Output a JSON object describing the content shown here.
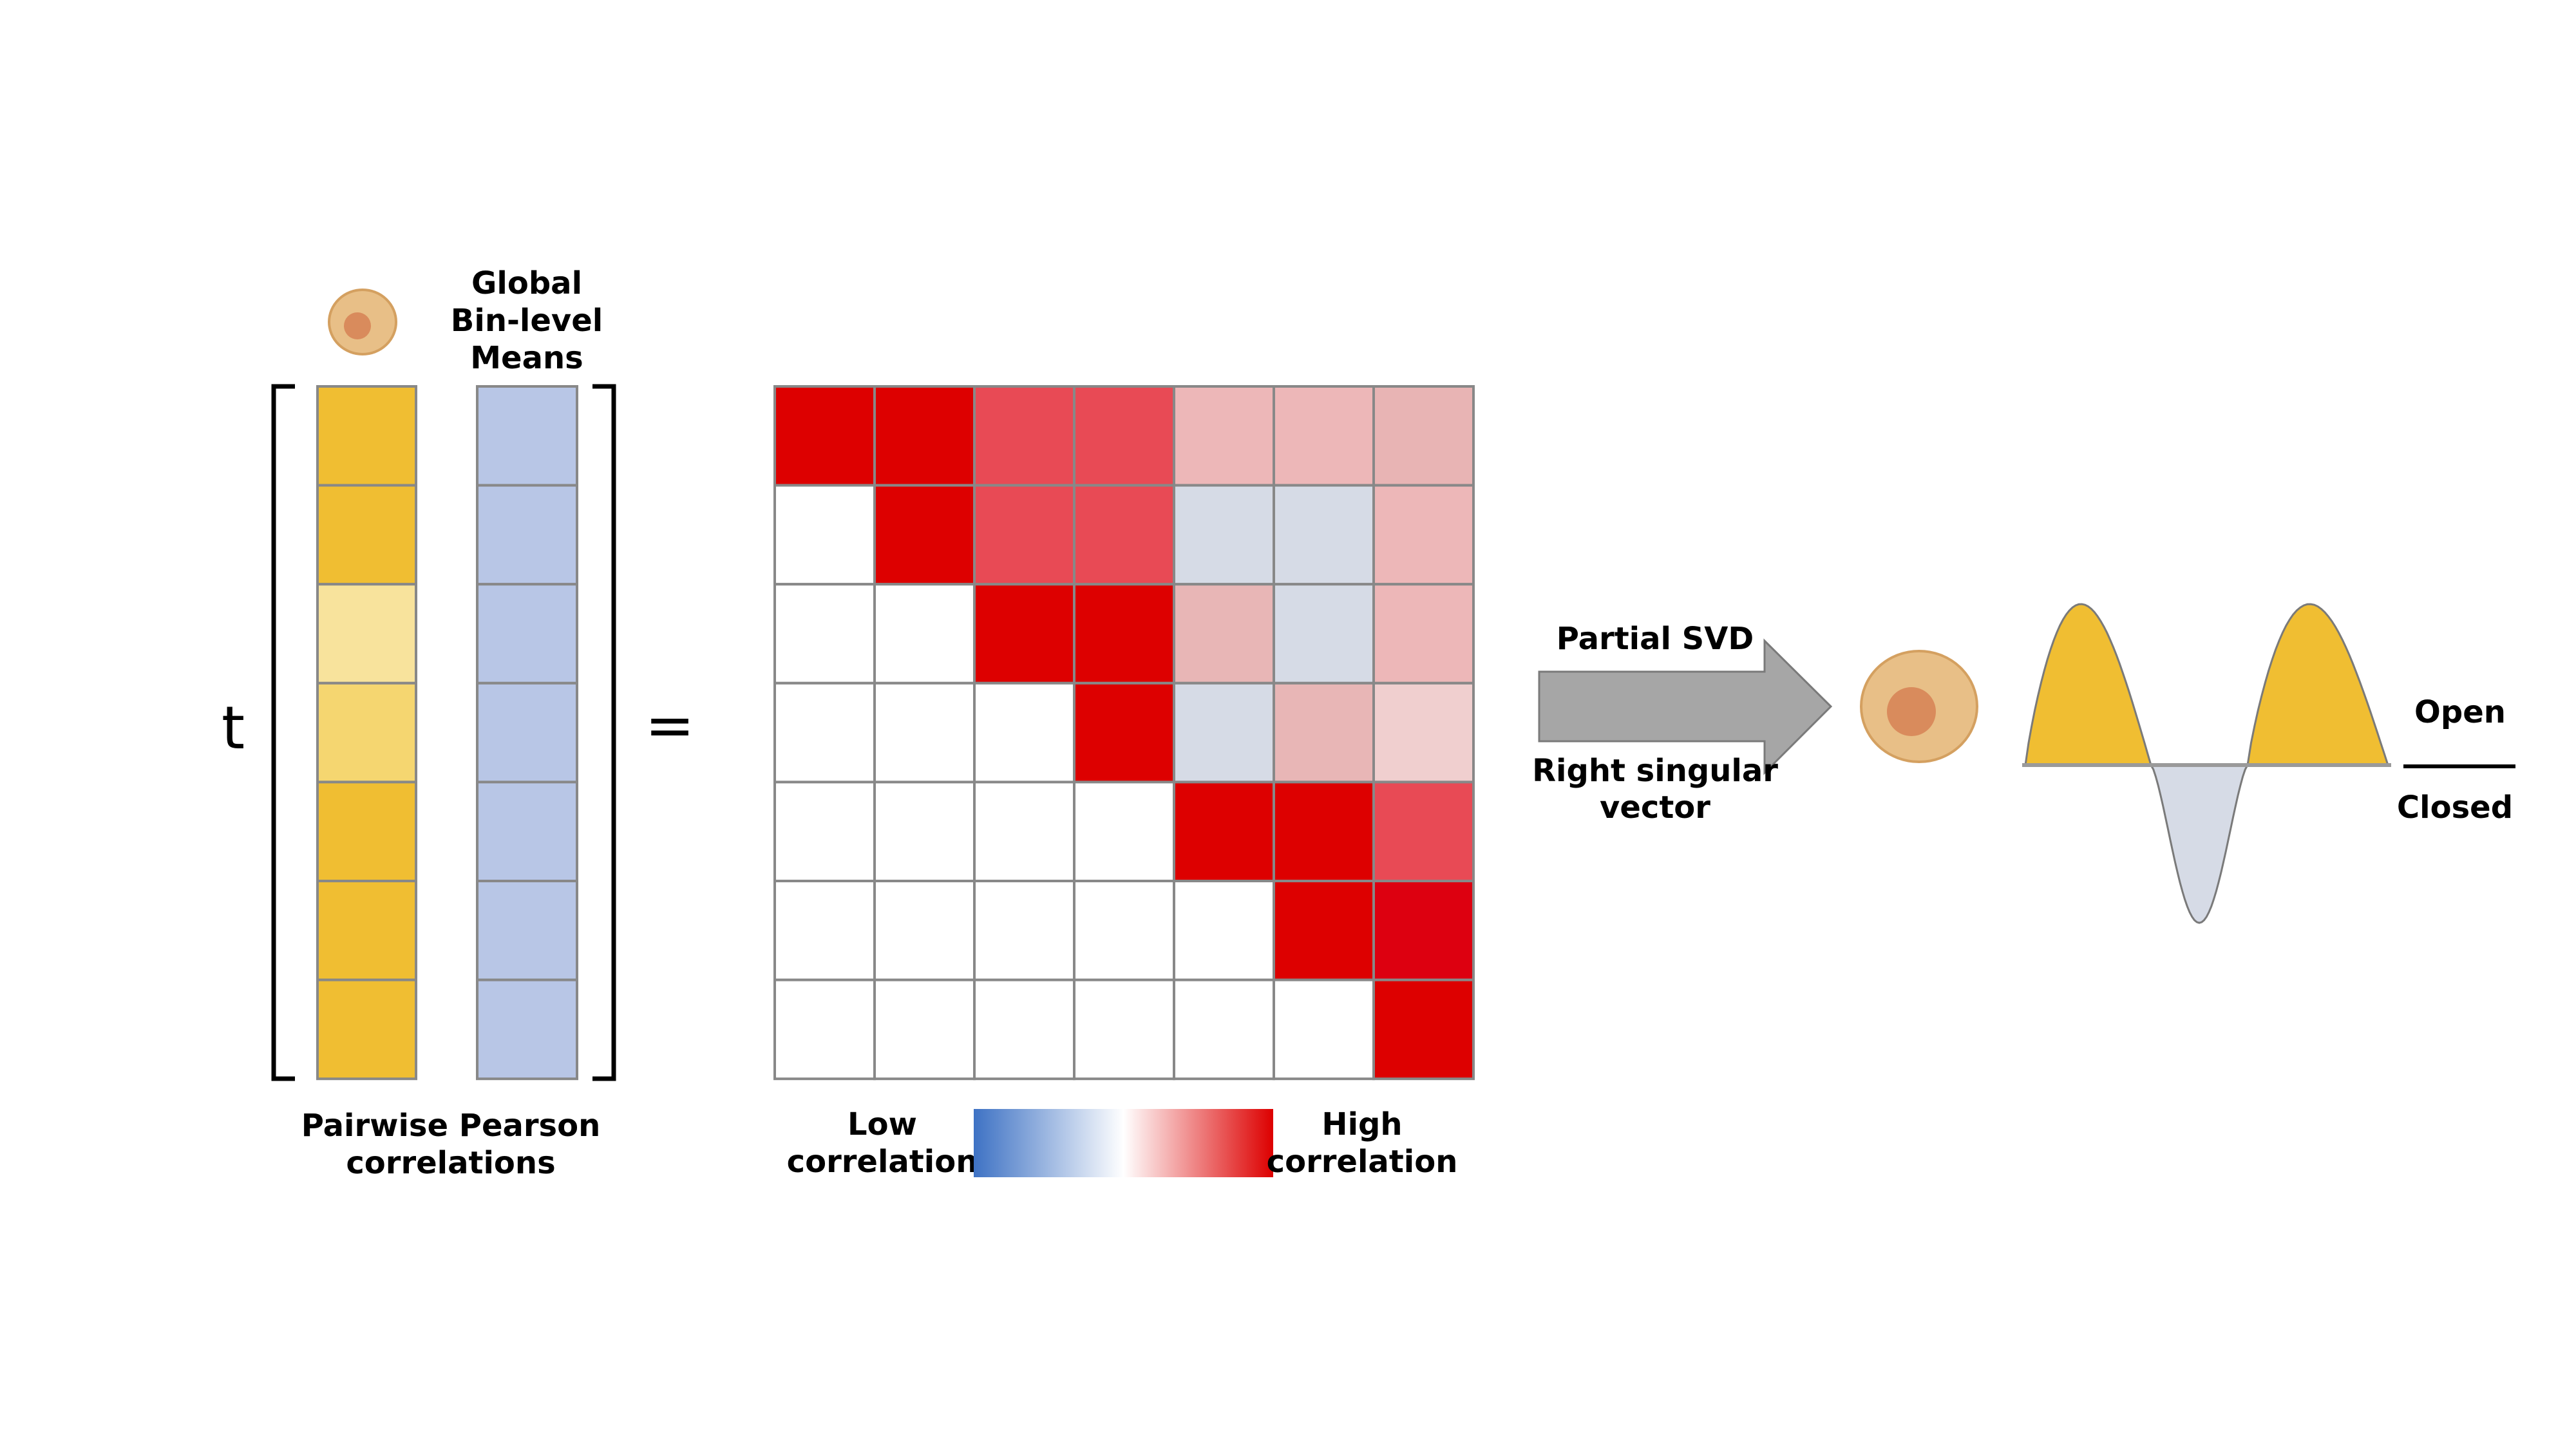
{
  "labels": {
    "global_means": [
      "Global",
      "Bin-level",
      "Means"
    ],
    "pairwise": [
      "Pairwise Pearson",
      "correlations"
    ],
    "t_symbol": "t",
    "equals": "=",
    "legend_low": [
      "Low",
      "correlation"
    ],
    "legend_high": [
      "High",
      "correlation"
    ],
    "arrow_top": "Partial SVD",
    "arrow_bottom": [
      "Right singular",
      "vector"
    ],
    "open": "Open",
    "closed": "Closed"
  },
  "colors": {
    "cell_outline": "#888888",
    "cell_nucleus": "#d98b5c",
    "cell_body": "#e8bf87",
    "cell_membrane": "#d4a060",
    "mean_column": "#b8c6e6",
    "arrow_fill": "#a6a6a6",
    "arrow_stroke": "#7a7a7a",
    "wave_positive": "#f0be32",
    "wave_negative": "#d6dbe6",
    "baseline": "#9a9a9a"
  },
  "correlation_vector": [
    "#f0be32",
    "#f0be32",
    "#f8e39c",
    "#f5d670",
    "#f0be32",
    "#f0be32",
    "#f0be32"
  ],
  "mean_vector": [
    "#b8c6e6",
    "#b8c6e6",
    "#b8c6e6",
    "#b8c6e6",
    "#b8c6e6",
    "#b8c6e6",
    "#b8c6e6"
  ],
  "matrix": [
    [
      "#dd0000",
      "#dd0000",
      "#e84a55",
      "#e84a55",
      "#edb7b8",
      "#edb7b8",
      "#e8b4b4"
    ],
    [
      "#ffffff",
      "#dd0000",
      "#e84a55",
      "#e84a55",
      "#d6dbe6",
      "#d6dbe6",
      "#edb7b8"
    ],
    [
      "#ffffff",
      "#ffffff",
      "#dd0000",
      "#dd0000",
      "#e8b6b6",
      "#d6dbe6",
      "#edb7b8"
    ],
    [
      "#ffffff",
      "#ffffff",
      "#ffffff",
      "#dd0000",
      "#d6dbe6",
      "#e8b6b6",
      "#f0cfcf"
    ],
    [
      "#ffffff",
      "#ffffff",
      "#ffffff",
      "#ffffff",
      "#dd0000",
      "#dd0000",
      "#e84a55"
    ],
    [
      "#ffffff",
      "#ffffff",
      "#ffffff",
      "#ffffff",
      "#ffffff",
      "#dd0000",
      "#dd0010"
    ],
    [
      "#ffffff",
      "#ffffff",
      "#ffffff",
      "#ffffff",
      "#ffffff",
      "#ffffff",
      "#dd0000"
    ]
  ],
  "colorbar": [
    "#3e72c4",
    "#ffffff",
    "#dd0000"
  ],
  "signal_profile": [
    {
      "sign": "positive",
      "amplitude": 1.0
    },
    {
      "sign": "negative",
      "amplitude": 0.98
    },
    {
      "sign": "positive",
      "amplitude": 1.0
    }
  ]
}
